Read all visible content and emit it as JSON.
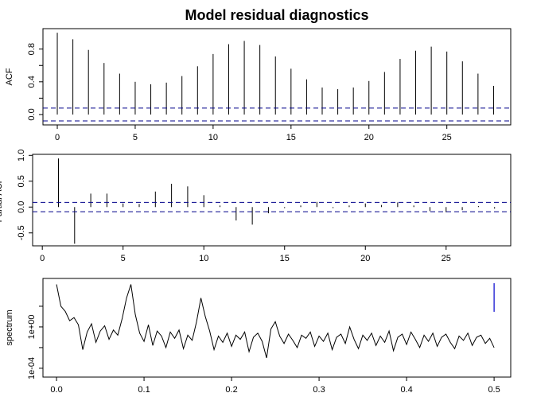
{
  "title": "Model residual diagnostics",
  "chart_data": [
    {
      "type": "acf",
      "y_label": "ACF",
      "x": [
        0,
        1,
        2,
        3,
        4,
        5,
        6,
        7,
        8,
        9,
        10,
        11,
        12,
        13,
        14,
        15,
        16,
        17,
        18,
        19,
        20,
        21,
        22,
        23,
        24,
        25,
        26,
        27,
        28
      ],
      "values": [
        1.0,
        0.92,
        0.79,
        0.63,
        0.5,
        0.4,
        0.37,
        0.39,
        0.47,
        0.59,
        0.74,
        0.86,
        0.9,
        0.85,
        0.71,
        0.56,
        0.43,
        0.33,
        0.31,
        0.33,
        0.41,
        0.52,
        0.68,
        0.78,
        0.83,
        0.77,
        0.65,
        0.5,
        0.35
      ],
      "color": "#000000",
      "ci": 0.078,
      "ci_color": "#00008b",
      "xlim": [
        -0.92,
        29.1
      ],
      "ylim": [
        -0.127,
        1.05
      ],
      "xticks": [
        0,
        5,
        10,
        15,
        20,
        25
      ],
      "yticks": [
        {
          "value": 0,
          "label": "0.0"
        },
        0.4,
        0.8
      ],
      "yminor": [
        0.2,
        0.6
      ]
    },
    {
      "type": "acf",
      "y_label": "Partial ACF",
      "x": [
        1,
        2,
        3,
        4,
        5,
        6,
        7,
        8,
        9,
        10,
        11,
        12,
        13,
        14,
        15,
        16,
        17,
        18,
        19,
        20,
        21,
        22,
        23,
        24,
        25,
        26,
        27,
        28
      ],
      "values": [
        0.94,
        -0.71,
        0.26,
        0.26,
        0.07,
        0.06,
        0.3,
        0.45,
        0.4,
        0.23,
        0.03,
        -0.26,
        -0.34,
        -0.12,
        -0.02,
        0.03,
        0.1,
        -0.02,
        0.03,
        0.07,
        0.04,
        0.09,
        0.03,
        -0.08,
        -0.1,
        -0.06,
        0.02,
        -0.03
      ],
      "color": "#000000",
      "ci": 0.09,
      "ci_color": "#00008b",
      "xlim": [
        -0.6,
        29.0
      ],
      "ylim": [
        -0.75,
        1.02
      ],
      "xticks": [
        0,
        5,
        10,
        15,
        20,
        25
      ],
      "yticks": [
        -0.5,
        {
          "value": 0,
          "label": "0.0"
        },
        0.5,
        {
          "value": 1,
          "label": "1.0"
        }
      ]
    },
    {
      "type": "line",
      "y_label": "spectrum",
      "log_y": true,
      "x": [
        0,
        0.005,
        0.01,
        0.015,
        0.02,
        0.025,
        0.03,
        0.035,
        0.04,
        0.045,
        0.05,
        0.055,
        0.06,
        0.065,
        0.07,
        0.075,
        0.08,
        0.085,
        0.09,
        0.095,
        0.1,
        0.105,
        0.11,
        0.115,
        0.12,
        0.125,
        0.13,
        0.135,
        0.14,
        0.145,
        0.15,
        0.155,
        0.16,
        0.165,
        0.17,
        0.175,
        0.18,
        0.185,
        0.19,
        0.195,
        0.2,
        0.205,
        0.21,
        0.215,
        0.22,
        0.225,
        0.23,
        0.235,
        0.24,
        0.245,
        0.25,
        0.255,
        0.26,
        0.265,
        0.27,
        0.275,
        0.28,
        0.285,
        0.29,
        0.295,
        0.3,
        0.305,
        0.31,
        0.315,
        0.32,
        0.325,
        0.33,
        0.335,
        0.34,
        0.345,
        0.35,
        0.355,
        0.36,
        0.365,
        0.37,
        0.375,
        0.38,
        0.385,
        0.39,
        0.395,
        0.4,
        0.405,
        0.41,
        0.415,
        0.42,
        0.425,
        0.43,
        0.435,
        0.44,
        0.445,
        0.45,
        0.455,
        0.46,
        0.465,
        0.47,
        0.475,
        0.48,
        0.485,
        0.49,
        0.495,
        0.5
      ],
      "values": [
        13000,
        100,
        32,
        4,
        7.9,
        1.6,
        0.0063,
        0.32,
        2,
        0.032,
        0.4,
        1.3,
        0.063,
        0.5,
        0.16,
        6.3,
        630,
        13000,
        16,
        0.25,
        0.04,
        1.6,
        0.016,
        0.4,
        0.13,
        0.01,
        0.32,
        0.079,
        0.5,
        0.0079,
        0.16,
        0.05,
        3.2,
        630,
        10,
        0.4,
        0.0063,
        0.13,
        0.032,
        0.25,
        0.013,
        0.16,
        0.063,
        0.32,
        0.004,
        0.1,
        0.25,
        0.04,
        0.001,
        0.63,
        3.2,
        0.13,
        0.025,
        0.2,
        0.05,
        0.01,
        0.16,
        0.079,
        0.32,
        0.013,
        0.13,
        0.04,
        0.25,
        0.0063,
        0.1,
        0.2,
        0.025,
        1,
        0.063,
        0.0079,
        0.16,
        0.05,
        0.25,
        0.016,
        0.13,
        0.032,
        0.4,
        0.005,
        0.1,
        0.2,
        0.02,
        0.32,
        0.063,
        0.01,
        0.16,
        0.04,
        0.25,
        0.013,
        0.1,
        0.2,
        0.032,
        0.0079,
        0.13,
        0.05,
        0.25,
        0.016,
        0.1,
        0.16,
        0.025,
        0.079,
        0.01
      ],
      "color": "#000000",
      "ci_bar": {
        "x": 0.5,
        "lower": 29,
        "upper": 17000,
        "color": "#0000cd"
      },
      "xlim": [
        -0.0155,
        0.519
      ],
      "ylim": [
        1.4e-05,
        49000
      ],
      "xticks": [
        {
          "value": 0,
          "label": "0.0"
        },
        0.1,
        0.2,
        0.3,
        0.4,
        0.5
      ],
      "yticks": [
        {
          "value": 0.0001,
          "label": "1e-04"
        },
        {
          "value": 1,
          "label": "1e+00"
        }
      ],
      "yminor": [
        0.01,
        100
      ]
    }
  ]
}
